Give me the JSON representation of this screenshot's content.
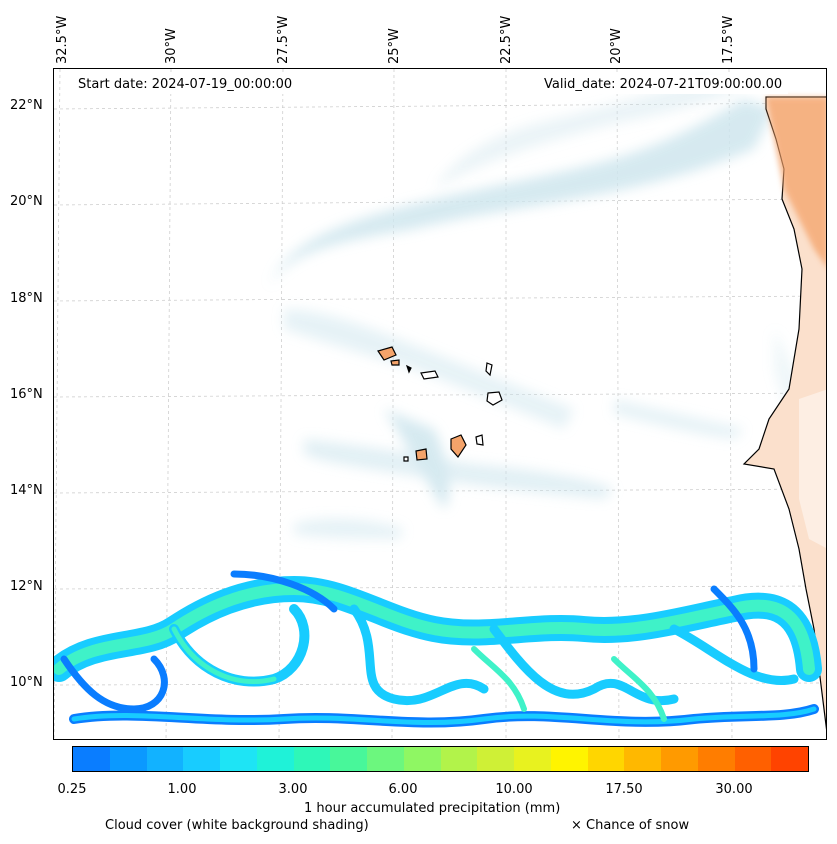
{
  "map": {
    "start_date_label": "Start date: 2024-07-19_00:00:00",
    "valid_date_label": "Valid_date: 2024-07-21T09:00:00.00",
    "longitude_labels": [
      "32.5°W",
      "30°W",
      "27.5°W",
      "25°W",
      "22.5°W",
      "20°W",
      "17.5°W"
    ],
    "latitude_labels": [
      "22°N",
      "20°N",
      "18°N",
      "16°N",
      "14°N",
      "12°N",
      "10°N"
    ]
  },
  "colorbar": {
    "tick_labels": [
      "0.25",
      "1.00",
      "3.00",
      "6.00",
      "10.00",
      "17.50",
      "30.00"
    ],
    "colors": [
      "#0a7dff",
      "#0b99ff",
      "#12b2ff",
      "#18ccff",
      "#1ee4f5",
      "#1ff2d8",
      "#2ef7b8",
      "#48f79a",
      "#6cf77e",
      "#8ff763",
      "#b2f34a",
      "#cff036",
      "#e8f21f",
      "#fff400",
      "#ffd600",
      "#ffb800",
      "#ff9a00",
      "#ff7d00",
      "#ff6000",
      "#ff4300"
    ],
    "label": "1 hour accumulated precipitation (mm)"
  },
  "legend": {
    "cloud_cover": "Cloud cover (white background shading)",
    "snow": "× Chance of snow"
  },
  "colors": {
    "cloud": "#cfe6ee",
    "land": "#f4a36a",
    "precip_light": "#18ccff",
    "precip_mid": "#3ff2c8",
    "precip_dark": "#0a7dff"
  }
}
